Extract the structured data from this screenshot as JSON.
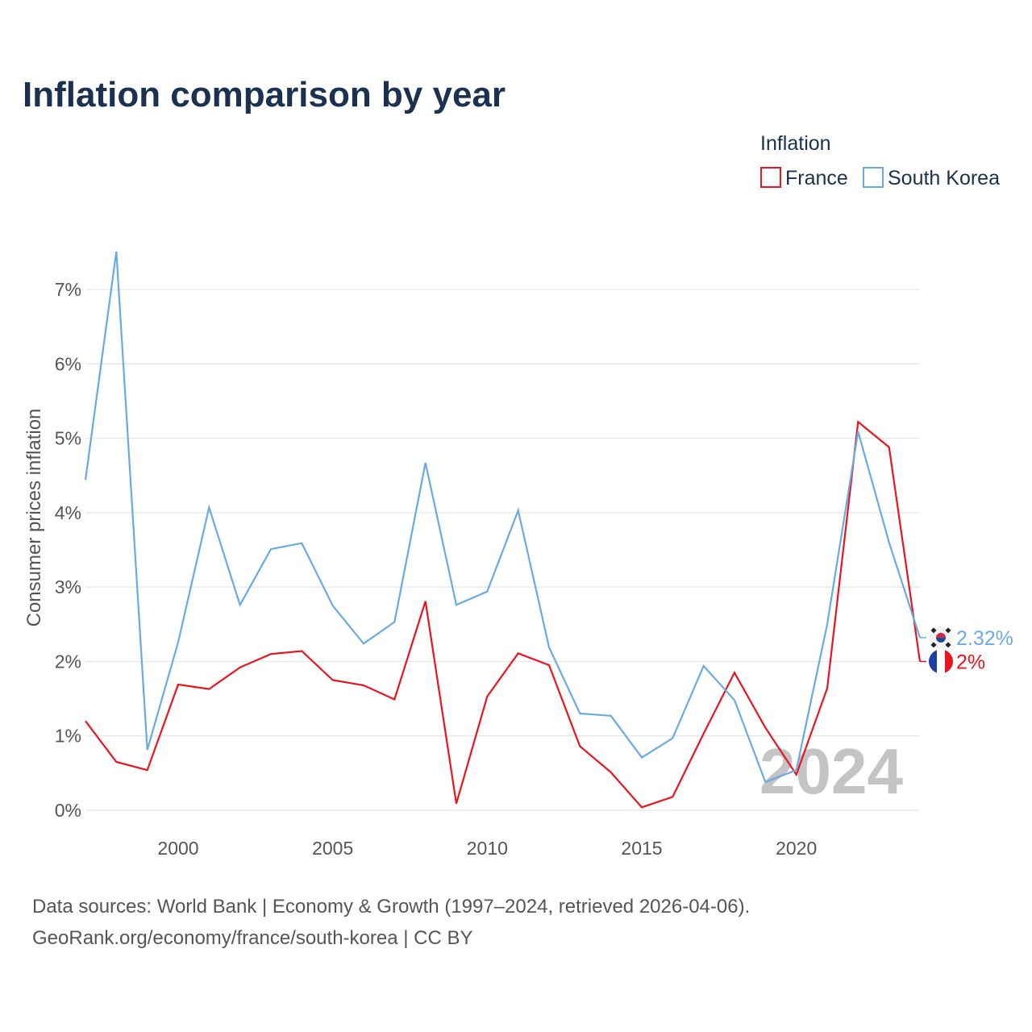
{
  "chart_data": {
    "type": "line",
    "title": "Inflation comparison by year",
    "legend_title": "Inflation",
    "legend_position": "top-right",
    "ylabel": "Consumer prices inflation",
    "xlabel": "",
    "xlim": [
      1997,
      2024
    ],
    "ylim": [
      0,
      7.5
    ],
    "x_ticks": [
      2000,
      2005,
      2010,
      2015,
      2020
    ],
    "y_ticks": [
      {
        "value": 0,
        "label": "0%"
      },
      {
        "value": 1,
        "label": "1%"
      },
      {
        "value": 2,
        "label": "2%"
      },
      {
        "value": 3,
        "label": "3%"
      },
      {
        "value": 4,
        "label": "4%"
      },
      {
        "value": 5,
        "label": "5%"
      },
      {
        "value": 6,
        "label": "6%"
      },
      {
        "value": 7,
        "label": "7%"
      }
    ],
    "grid": true,
    "watermark_year": "2024",
    "x": [
      1997,
      1998,
      1999,
      2000,
      2001,
      2002,
      2003,
      2004,
      2005,
      2006,
      2007,
      2008,
      2009,
      2010,
      2011,
      2012,
      2013,
      2014,
      2015,
      2016,
      2017,
      2018,
      2019,
      2020,
      2021,
      2022,
      2023,
      2024
    ],
    "series": [
      {
        "name": "France",
        "color": "#e8141e",
        "flag": "france-flag-icon",
        "end_label": "2%",
        "values": [
          1.2,
          0.65,
          0.54,
          1.69,
          1.63,
          1.92,
          2.1,
          2.14,
          1.75,
          1.68,
          1.49,
          2.81,
          0.09,
          1.53,
          2.11,
          1.95,
          0.86,
          0.51,
          0.04,
          0.18,
          1.03,
          1.85,
          1.11,
          0.48,
          1.64,
          5.22,
          4.88,
          2.0
        ]
      },
      {
        "name": "South Korea",
        "color": "#6aaae4",
        "flag": "south-korea-flag-icon",
        "end_label": "2.32%",
        "values": [
          4.44,
          7.51,
          0.81,
          2.26,
          4.07,
          2.76,
          3.51,
          3.59,
          2.75,
          2.24,
          2.53,
          4.67,
          2.76,
          2.94,
          4.03,
          2.19,
          1.3,
          1.27,
          0.71,
          0.97,
          1.94,
          1.48,
          0.38,
          0.54,
          2.5,
          5.09,
          3.6,
          2.32
        ]
      }
    ]
  },
  "source_line1": "Data sources: World Bank | Economy & Growth (1997–2024, retrieved 2026-04-06).",
  "source_line2": "GeoRank.org/economy/france/south-korea | CC BY"
}
